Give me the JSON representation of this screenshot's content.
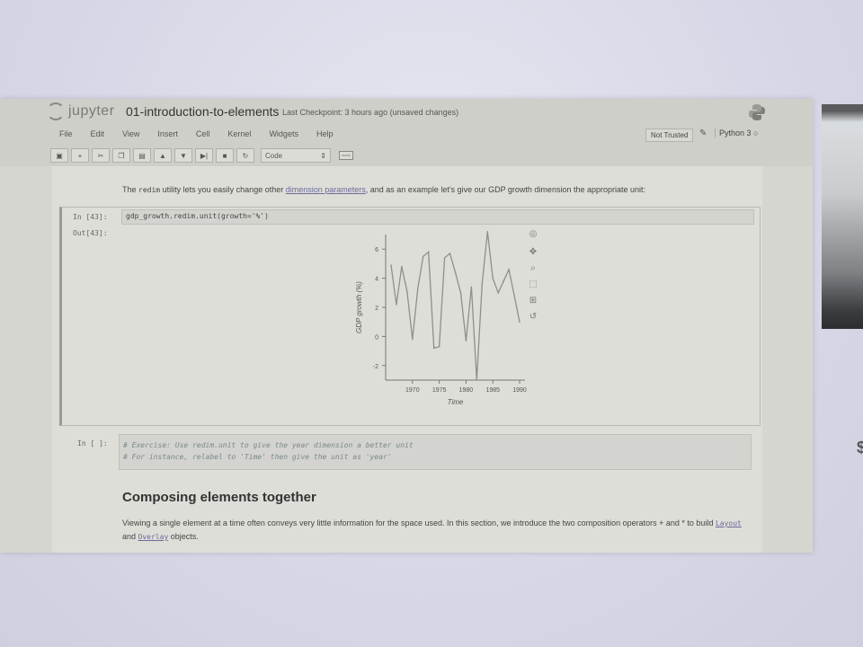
{
  "header": {
    "logo_text": "jupyter",
    "notebook_title": "01-introduction-to-elements",
    "checkpoint": "Last Checkpoint: 3 hours ago (unsaved changes)"
  },
  "menu": [
    "File",
    "Edit",
    "View",
    "Insert",
    "Cell",
    "Kernel",
    "Widgets",
    "Help"
  ],
  "status": {
    "trust": "Not Trusted",
    "kernel": "Python 3"
  },
  "toolbar": {
    "cell_type": "Code"
  },
  "cells": {
    "md1": {
      "pre": "The",
      "code": "redim",
      "mid": "utility lets you easily change other",
      "link": "dimension parameters",
      "post": ", and as an example let's give our GDP growth dimension the appropriate unit:"
    },
    "code1": {
      "prompt_in": "In [43]:",
      "source": "gdp_growth.redim.unit(growth='%')",
      "prompt_out": "Out[43]:"
    },
    "code2": {
      "prompt_in": "In [ ]:",
      "line1": "# Exercise: Use redim.unit to give the year dimension a better unit",
      "line2": "# For instance, relabel to 'Time' then give the unit as 'year'"
    },
    "heading": "Composing elements together",
    "md2": {
      "text1": "Viewing a single element at a time often conveys very little information for the space used. In this section, we introduce the two composition operators + and * to build",
      "code_a": "Layout",
      "and": "and",
      "code_b": "Overlay",
      "text2": "objects."
    }
  },
  "chart_data": {
    "type": "line",
    "xlabel": "Time",
    "ylabel": "GDP growth (%)",
    "xlim": [
      1965,
      1991
    ],
    "ylim": [
      -3,
      7
    ],
    "xticks": [
      "1970",
      "1975",
      "1980",
      "1985",
      "1990"
    ],
    "yticks": [
      "-2",
      "0",
      "2",
      "4",
      "6"
    ],
    "x": [
      1966,
      1967,
      1968,
      1969,
      1970,
      1971,
      1972,
      1973,
      1974,
      1975,
      1976,
      1977,
      1978,
      1979,
      1980,
      1981,
      1982,
      1983,
      1984,
      1985,
      1986,
      1987,
      1988,
      1989,
      1990
    ],
    "y": [
      4.9,
      2.2,
      4.8,
      3.1,
      -0.2,
      3.3,
      5.5,
      5.8,
      -0.8,
      -0.7,
      5.4,
      5.7,
      4.4,
      3.0,
      -0.3,
      3.4,
      -3.0,
      3.6,
      7.2,
      4.0,
      3.0,
      3.8,
      4.6,
      2.8,
      1.0
    ],
    "line_color": "#8f8f8b",
    "toolbar_icons": [
      "bokeh-logo-icon",
      "pan-icon",
      "wheel-zoom-icon",
      "box-zoom-icon",
      "save-icon",
      "reset-icon"
    ]
  }
}
